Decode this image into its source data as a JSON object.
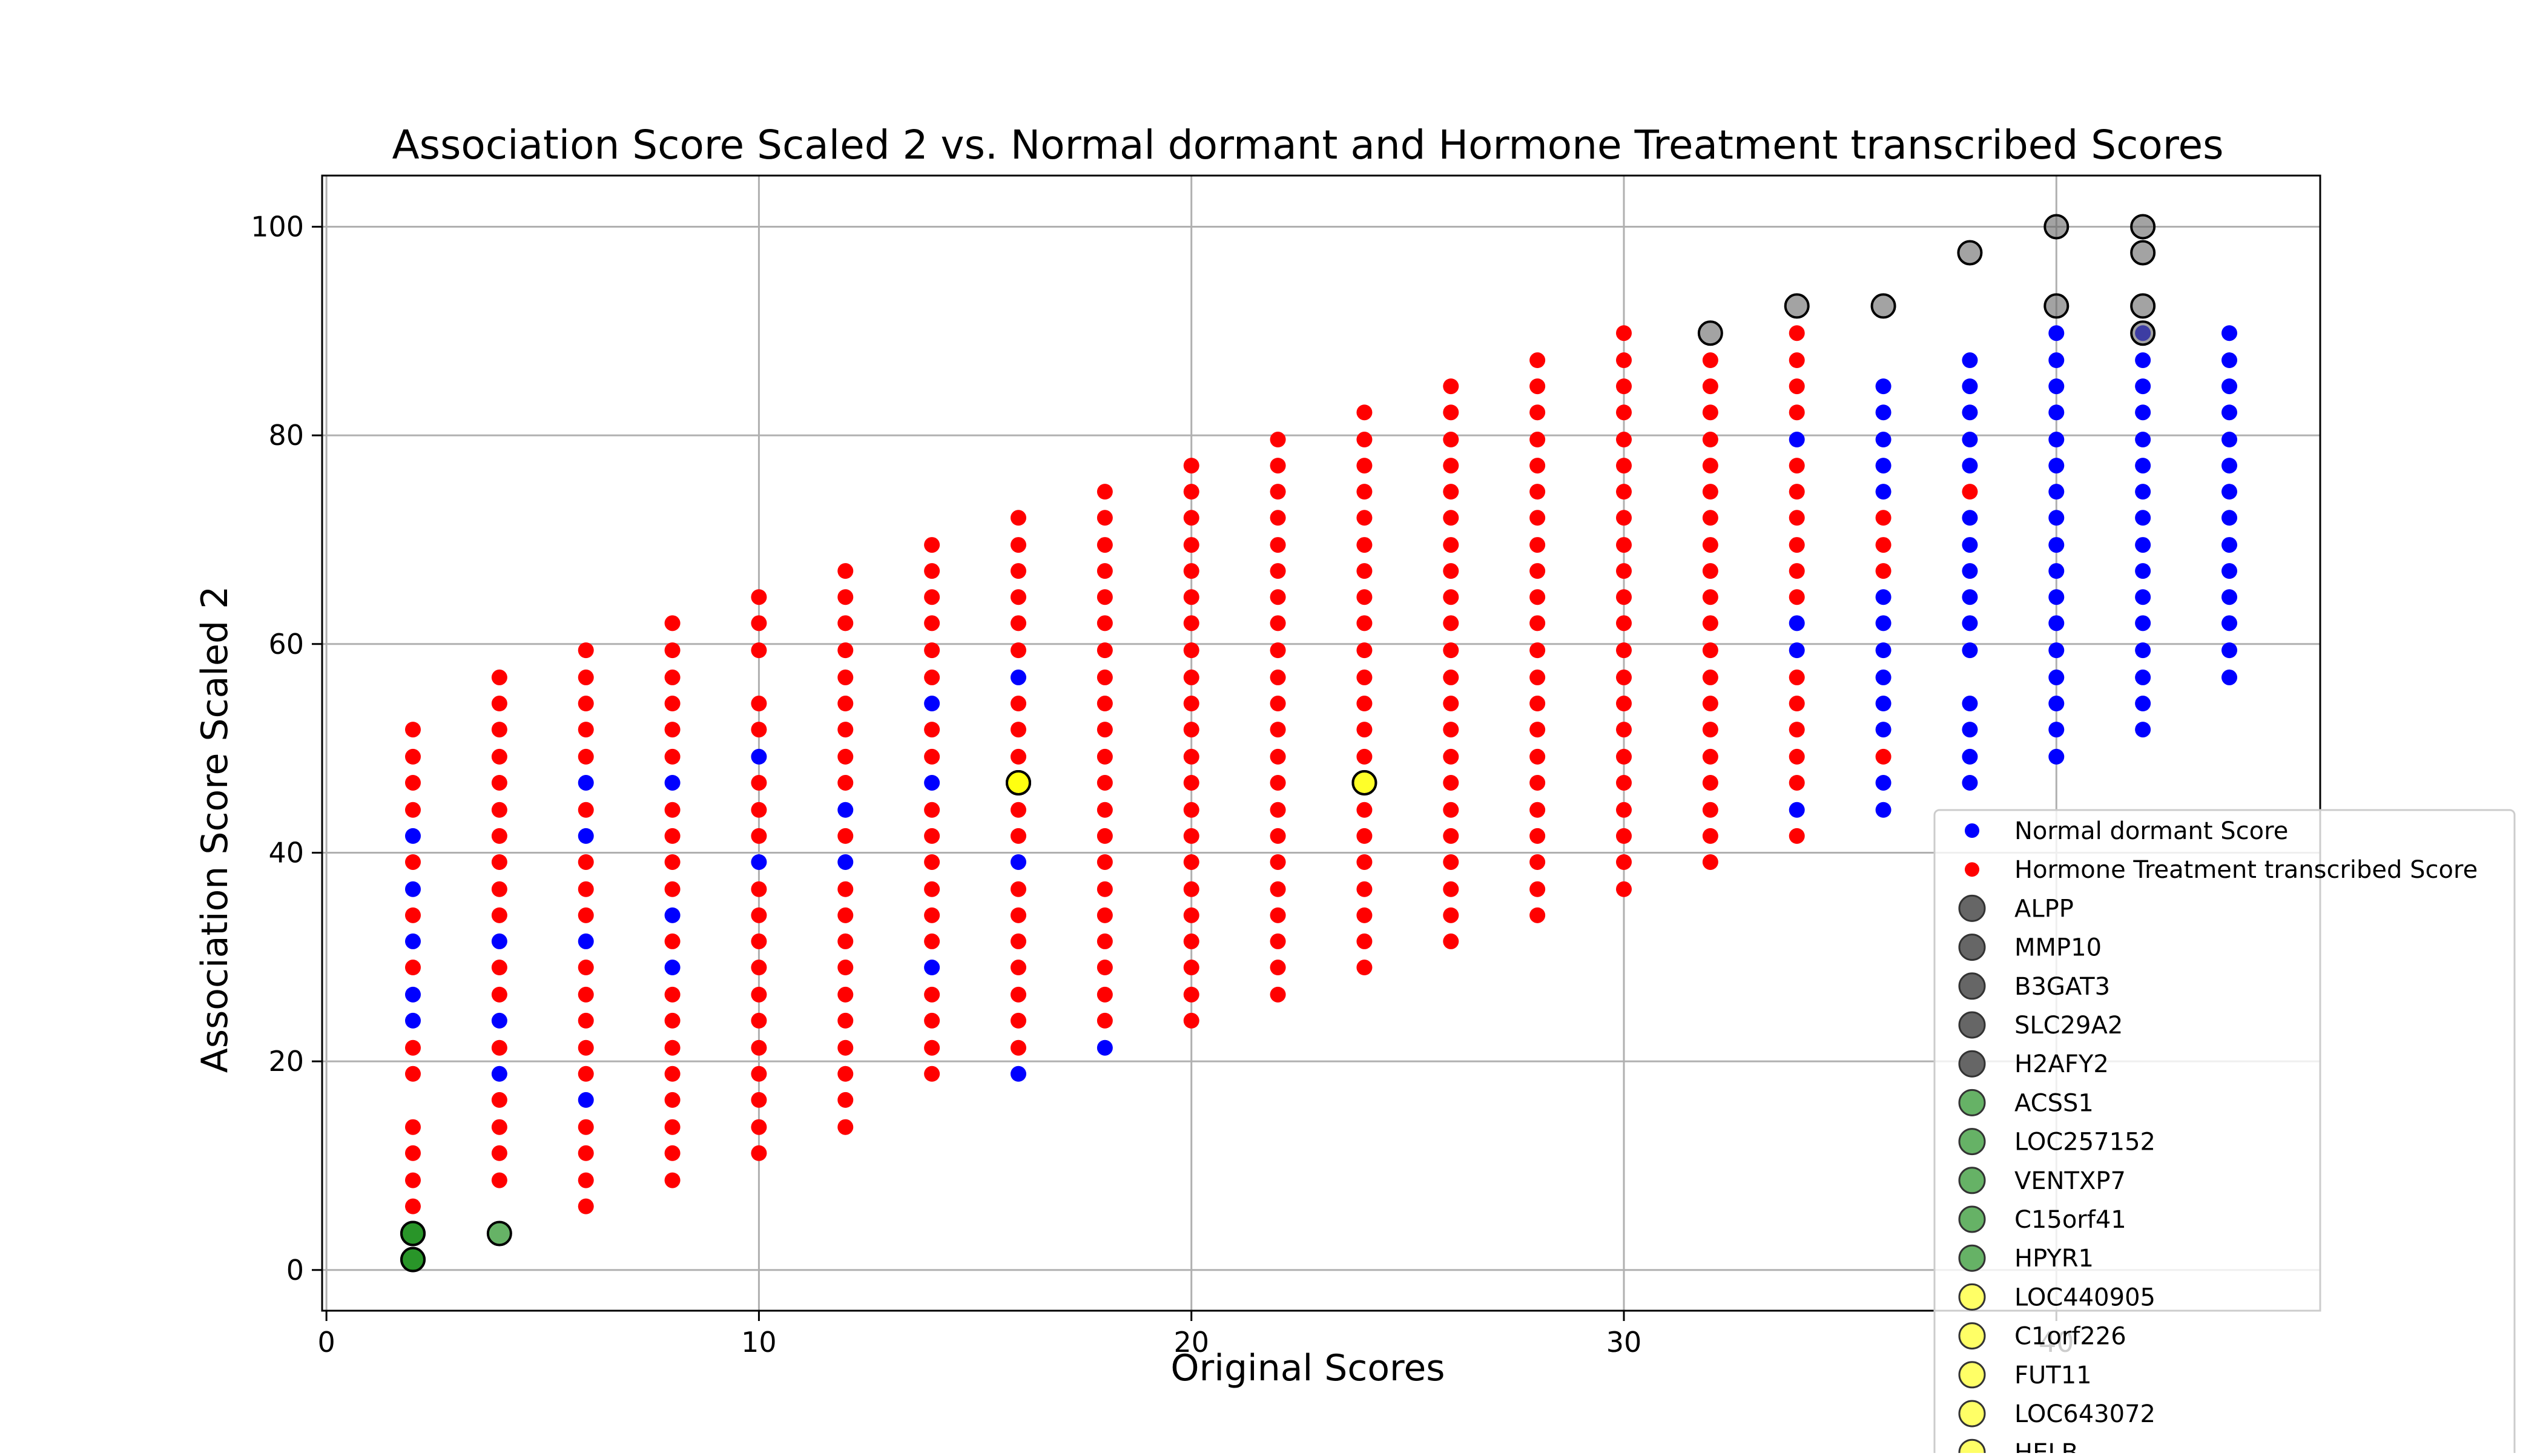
{
  "chart_data": {
    "type": "scatter",
    "title": "Association Score Scaled 2 vs. Normal dormant and Hormone Treatment transcribed Scores",
    "xlabel": "Original Scores",
    "ylabel": "Association Score Scaled 2",
    "xlim": [
      -0.1,
      46.1
    ],
    "ylim": [
      -3.9,
      104.9
    ],
    "grid": true,
    "legend_position": "bottom-right",
    "x_ticks": [
      0,
      10,
      20,
      30,
      40
    ],
    "y_ticks": [
      0,
      20,
      40,
      60,
      80,
      100
    ],
    "x_tick_labels": [
      "0",
      "10",
      "20",
      "30",
      "40"
    ],
    "y_tick_labels": [
      "0",
      "20",
      "40",
      "60",
      "80",
      "100"
    ],
    "series": [
      {
        "name": "Normal dormant Score",
        "color": "#0000ff",
        "columns": [
          {
            "x": 2,
            "y": [
              41.6,
              36.5,
              31.5,
              26.4,
              23.9
            ]
          },
          {
            "x": 4,
            "y": [
              31.5,
              23.9,
              18.8
            ]
          },
          {
            "x": 6,
            "y": [
              46.7,
              41.6,
              31.5,
              16.3
            ]
          },
          {
            "x": 8,
            "y": [
              46.7,
              34.0,
              29.0
            ]
          },
          {
            "x": 10,
            "y": [
              49.2,
              39.1
            ]
          },
          {
            "x": 12,
            "y": [
              44.1,
              39.1
            ]
          },
          {
            "x": 14,
            "y": [
              54.3,
              46.7,
              29.0
            ]
          },
          {
            "x": 16,
            "y": [
              56.8,
              39.1,
              18.8
            ]
          },
          {
            "x": 18,
            "y": [
              21.3
            ]
          },
          {
            "x": 34,
            "y": [
              79.6,
              62.0,
              59.4,
              44.1
            ]
          },
          {
            "x": 36,
            "y": [
              84.7,
              82.2,
              79.6,
              77.1,
              74.6,
              64.5,
              62.0,
              59.4,
              56.8,
              54.3,
              51.8,
              46.7,
              44.1
            ]
          },
          {
            "x": 38,
            "y": [
              87.2,
              84.7,
              82.2,
              79.6,
              77.1,
              72.1,
              69.5,
              67.0,
              64.5,
              62.0,
              59.4,
              54.3,
              51.8,
              49.2,
              46.7
            ]
          },
          {
            "x": 40,
            "y": [
              89.8,
              87.2,
              84.7,
              82.2,
              79.6,
              77.1,
              74.6,
              72.1,
              69.5,
              67.0,
              64.5,
              62.0,
              59.4,
              56.8,
              54.3,
              51.8,
              49.2
            ]
          },
          {
            "x": 42,
            "y": [
              89.8,
              87.2,
              84.7,
              82.2,
              79.6,
              77.1,
              74.6,
              72.1,
              69.5,
              67.0,
              64.5,
              62.0,
              59.4,
              56.8,
              54.3,
              51.8
            ]
          },
          {
            "x": 44,
            "y": [
              89.8,
              87.2,
              84.7,
              82.2,
              79.6,
              77.1,
              74.6,
              72.1,
              69.5,
              67.0,
              64.5,
              62.0,
              59.4,
              56.8
            ]
          }
        ]
      },
      {
        "name": "Hormone Treatment transcribed Score",
        "color": "#ff0000",
        "columns": [
          {
            "x": 2,
            "y": [
              51.8,
              49.2,
              46.7,
              44.1,
              39.1,
              34.0,
              29.0,
              21.3,
              18.8,
              13.7,
              11.2,
              8.6,
              6.1
            ]
          },
          {
            "x": 4,
            "y": [
              56.8,
              54.3,
              51.8,
              49.2,
              46.7,
              44.1,
              41.6,
              39.1,
              36.5,
              34.0,
              29.0,
              26.4,
              21.3,
              16.3,
              13.7,
              11.2,
              8.6
            ]
          },
          {
            "x": 6,
            "y": [
              59.4,
              56.8,
              54.3,
              51.8,
              49.2,
              44.1,
              39.1,
              36.5,
              34.0,
              29.0,
              26.4,
              23.9,
              21.3,
              18.8,
              13.7,
              11.2,
              8.6,
              6.1
            ]
          },
          {
            "x": 8,
            "y": [
              62.0,
              59.4,
              56.8,
              54.3,
              51.8,
              49.2,
              44.1,
              41.6,
              39.1,
              36.5,
              31.5,
              26.4,
              23.9,
              21.3,
              18.8,
              16.3,
              13.7,
              11.2,
              8.6
            ]
          },
          {
            "x": 10,
            "y": [
              64.5,
              62.0,
              59.4,
              54.3,
              51.8,
              46.7,
              44.1,
              41.6,
              36.5,
              34.0,
              31.5,
              29.0,
              26.4,
              23.9,
              21.3,
              18.8,
              16.3,
              13.7,
              11.2
            ]
          },
          {
            "x": 12,
            "y": [
              67.0,
              64.5,
              62.0,
              59.4,
              56.8,
              54.3,
              51.8,
              49.2,
              46.7,
              41.6,
              36.5,
              34.0,
              31.5,
              29.0,
              26.4,
              23.9,
              21.3,
              18.8,
              16.3,
              13.7
            ]
          },
          {
            "x": 14,
            "y": [
              69.5,
              67.0,
              64.5,
              62.0,
              59.4,
              56.8,
              51.8,
              49.2,
              44.1,
              41.6,
              39.1,
              36.5,
              34.0,
              31.5,
              26.4,
              23.9,
              21.3,
              18.8
            ]
          },
          {
            "x": 16,
            "y": [
              72.1,
              69.5,
              67.0,
              64.5,
              62.0,
              59.4,
              54.3,
              51.8,
              49.2,
              44.1,
              41.6,
              36.5,
              34.0,
              31.5,
              29.0,
              26.4,
              23.9,
              21.3
            ]
          },
          {
            "x": 18,
            "y": [
              74.6,
              72.1,
              69.5,
              67.0,
              64.5,
              62.0,
              59.4,
              56.8,
              54.3,
              51.8,
              49.2,
              46.7,
              44.1,
              41.6,
              39.1,
              36.5,
              34.0,
              31.5,
              29.0,
              26.4,
              23.9
            ]
          },
          {
            "x": 20,
            "y": [
              77.1,
              74.6,
              72.1,
              69.5,
              67.0,
              64.5,
              62.0,
              59.4,
              56.8,
              54.3,
              51.8,
              49.2,
              46.7,
              44.1,
              41.6,
              39.1,
              36.5,
              34.0,
              31.5,
              29.0,
              26.4,
              23.9
            ]
          },
          {
            "x": 22,
            "y": [
              79.6,
              77.1,
              74.6,
              72.1,
              69.5,
              67.0,
              64.5,
              62.0,
              59.4,
              56.8,
              54.3,
              51.8,
              49.2,
              46.7,
              44.1,
              41.6,
              39.1,
              36.5,
              34.0,
              31.5,
              29.0,
              26.4
            ]
          },
          {
            "x": 24,
            "y": [
              82.2,
              79.6,
              77.1,
              74.6,
              72.1,
              69.5,
              67.0,
              64.5,
              62.0,
              59.4,
              56.8,
              54.3,
              51.8,
              49.2,
              44.1,
              41.6,
              39.1,
              36.5,
              34.0,
              31.5,
              29.0
            ]
          },
          {
            "x": 26,
            "y": [
              84.7,
              82.2,
              79.6,
              77.1,
              74.6,
              72.1,
              69.5,
              67.0,
              64.5,
              62.0,
              59.4,
              56.8,
              54.3,
              51.8,
              49.2,
              46.7,
              44.1,
              41.6,
              39.1,
              36.5,
              34.0,
              31.5
            ]
          },
          {
            "x": 28,
            "y": [
              87.2,
              84.7,
              82.2,
              79.6,
              77.1,
              74.6,
              72.1,
              69.5,
              67.0,
              64.5,
              62.0,
              59.4,
              56.8,
              54.3,
              51.8,
              49.2,
              46.7,
              44.1,
              41.6,
              39.1,
              36.5,
              34.0
            ]
          },
          {
            "x": 30,
            "y": [
              89.8,
              87.2,
              84.7,
              82.2,
              79.6,
              77.1,
              74.6,
              72.1,
              69.5,
              67.0,
              64.5,
              62.0,
              59.4,
              56.8,
              54.3,
              51.8,
              49.2,
              46.7,
              44.1,
              41.6,
              39.1,
              36.5
            ]
          },
          {
            "x": 32,
            "y": [
              87.2,
              84.7,
              82.2,
              79.6,
              77.1,
              74.6,
              72.1,
              69.5,
              67.0,
              64.5,
              62.0,
              59.4,
              56.8,
              54.3,
              51.8,
              49.2,
              46.7,
              44.1,
              41.6,
              39.1
            ]
          },
          {
            "x": 34,
            "y": [
              89.8,
              87.2,
              84.7,
              82.2,
              77.1,
              74.6,
              72.1,
              69.5,
              67.0,
              64.5,
              56.8,
              54.3,
              51.8,
              49.2,
              46.7,
              41.6
            ]
          },
          {
            "x": 36,
            "y": [
              72.1,
              69.5,
              67.0,
              49.2
            ]
          },
          {
            "x": 38,
            "y": [
              74.6
            ]
          }
        ]
      }
    ],
    "highlight_groups": [
      {
        "color": "#666666",
        "points": [
          {
            "name": "ALPP",
            "x": 40,
            "y": 100.0
          },
          {
            "name": "MMP10",
            "x": 42,
            "y": 100.0
          },
          {
            "name": "B3GAT3",
            "x": 38,
            "y": 97.5
          },
          {
            "name": "SLC29A2",
            "x": 42,
            "y": 97.5
          },
          {
            "name": "H2AFY2",
            "x": 34,
            "y": 92.4
          },
          {
            "name": "",
            "x": 36,
            "y": 92.4
          },
          {
            "name": "",
            "x": 40,
            "y": 92.4
          },
          {
            "name": "",
            "x": 42,
            "y": 92.4
          },
          {
            "name": "",
            "x": 32,
            "y": 89.8
          },
          {
            "name": "",
            "x": 42,
            "y": 89.8
          }
        ]
      },
      {
        "color": "#008000",
        "points": [
          {
            "name": "ACSS1",
            "x": 2,
            "y": 3.5
          },
          {
            "name": "LOC257152",
            "x": 2,
            "y": 1.0
          },
          {
            "name": "VENTXP7",
            "x": 4,
            "y": 3.5
          },
          {
            "name": "C15orf41",
            "x": 2,
            "y": 3.5
          },
          {
            "name": "HPYR1",
            "x": 2,
            "y": 1.0
          }
        ]
      },
      {
        "color": "#ffff00",
        "points": [
          {
            "name": "LOC440905",
            "x": 16,
            "y": 46.7
          },
          {
            "name": "C1orf226",
            "x": 24,
            "y": 46.7
          },
          {
            "name": "FUT11",
            "x": 16,
            "y": 46.7
          },
          {
            "name": "LOC643072",
            "x": 24,
            "y": 46.7
          },
          {
            "name": "HELB",
            "x": 16,
            "y": 46.7
          }
        ]
      }
    ],
    "legend": [
      {
        "label": "Normal dormant Score",
        "color": "#0000ff",
        "marker": "small"
      },
      {
        "label": "Hormone Treatment transcribed Score",
        "color": "#ff0000",
        "marker": "small"
      },
      {
        "label": "ALPP",
        "color": "#666666",
        "marker": "large"
      },
      {
        "label": "MMP10",
        "color": "#666666",
        "marker": "large"
      },
      {
        "label": "B3GAT3",
        "color": "#666666",
        "marker": "large"
      },
      {
        "label": "SLC29A2",
        "color": "#666666",
        "marker": "large"
      },
      {
        "label": "H2AFY2",
        "color": "#666666",
        "marker": "large"
      },
      {
        "label": "ACSS1",
        "color": "#66b266",
        "marker": "large"
      },
      {
        "label": "LOC257152",
        "color": "#66b266",
        "marker": "large"
      },
      {
        "label": "VENTXP7",
        "color": "#66b266",
        "marker": "large"
      },
      {
        "label": "C15orf41",
        "color": "#66b266",
        "marker": "large"
      },
      {
        "label": "HPYR1",
        "color": "#66b266",
        "marker": "large"
      },
      {
        "label": "LOC440905",
        "color": "#ffff66",
        "marker": "large"
      },
      {
        "label": "C1orf226",
        "color": "#ffff66",
        "marker": "large"
      },
      {
        "label": "FUT11",
        "color": "#ffff66",
        "marker": "large"
      },
      {
        "label": "LOC643072",
        "color": "#ffff66",
        "marker": "large"
      },
      {
        "label": "HELB",
        "color": "#ffff66",
        "marker": "large"
      }
    ]
  }
}
